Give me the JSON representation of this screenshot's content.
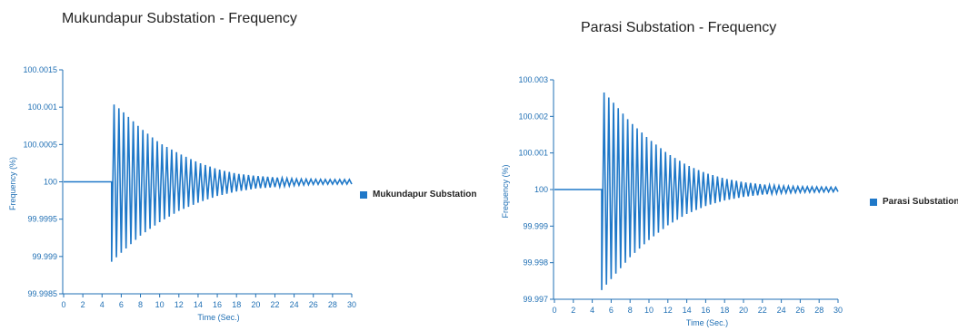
{
  "chart_data": [
    {
      "type": "line",
      "title": "Mukundapur Substation - Frequency",
      "xlabel": "Time (Sec.)",
      "ylabel": "Frequency (%)",
      "xlim": [
        0,
        30
      ],
      "ylim": [
        99.9985,
        100.0015
      ],
      "x_ticks": [
        "0",
        "2",
        "4",
        "6",
        "8",
        "10",
        "12",
        "14",
        "16",
        "18",
        "20",
        "22",
        "24",
        "26",
        "28",
        "30"
      ],
      "y_ticks": [
        "100.0015",
        "100.001",
        "100.0005",
        "100",
        "99.9995",
        "99.999",
        "99.9985"
      ],
      "legend_position": "right",
      "grid": false,
      "series": [
        {
          "name": "Mukundapur Substation",
          "color": "#1f78c8",
          "baseline": 100,
          "disturbance_time": 5,
          "oscillation_period": 0.5,
          "envelope": {
            "time": [
              5,
              6,
              8,
              10,
              12,
              14,
              16,
              18,
              20,
              22,
              24,
              26,
              28,
              30
            ],
            "upper": [
              100.00106,
              100.00096,
              100.00072,
              100.00052,
              100.00038,
              100.00026,
              100.00017,
              100.00011,
              100.00008,
              100.00006,
              100.00004,
              100.000035,
              100.00003,
              100.00003
            ],
            "lower": [
              99.99893,
              99.99905,
              99.99928,
              99.99946,
              99.99961,
              99.99972,
              99.99981,
              99.99987,
              99.99991,
              99.99993,
              99.99995,
              99.999965,
              99.99997,
              99.99997
            ]
          }
        }
      ]
    },
    {
      "type": "line",
      "title": "Parasi Substation - Frequency",
      "xlabel": "Time (Sec.)",
      "ylabel": "Frequency (%)",
      "xlim": [
        0,
        30
      ],
      "ylim": [
        99.997,
        100.003
      ],
      "x_ticks": [
        "0",
        "2",
        "4",
        "6",
        "8",
        "10",
        "12",
        "14",
        "16",
        "18",
        "20",
        "22",
        "24",
        "26",
        "28",
        "30"
      ],
      "y_ticks": [
        "100.003",
        "100.002",
        "100.001",
        "100",
        "99.999",
        "99.998",
        "99.997"
      ],
      "legend_position": "right",
      "grid": false,
      "series": [
        {
          "name": "Parasi Substation",
          "color": "#1f78c8",
          "baseline": 100,
          "disturbance_time": 5,
          "oscillation_period": 0.5,
          "envelope": {
            "time": [
              5,
              6,
              8,
              10,
              12,
              14,
              16,
              18,
              20,
              22,
              24,
              26,
              28,
              30
            ],
            "upper": [
              100.00272,
              100.00245,
              100.00185,
              100.00138,
              100.00098,
              100.00067,
              100.00045,
              100.0003,
              100.0002,
              100.00014,
              100.0001,
              100.00008,
              100.00007,
              100.00006
            ],
            "lower": [
              99.99725,
              99.99755,
              99.99815,
              99.99862,
              99.99902,
              99.99933,
              99.99955,
              99.9997,
              99.9998,
              99.99986,
              99.9999,
              99.99992,
              99.99993,
              99.99994
            ]
          }
        }
      ]
    }
  ]
}
